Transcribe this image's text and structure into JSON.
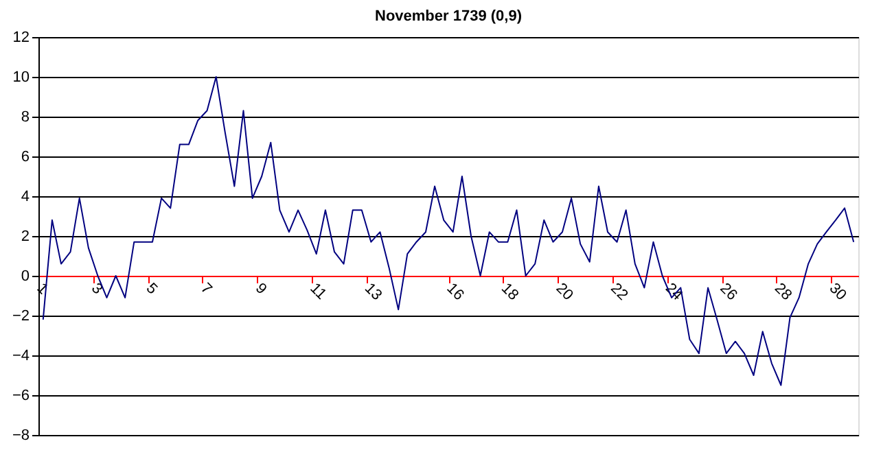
{
  "chart_data": {
    "type": "line",
    "title": "November 1739 (0,9)",
    "x": [
      1.17,
      1.5,
      1.83,
      2.17,
      2.5,
      2.83,
      3.17,
      3.5,
      3.83,
      4.17,
      4.5,
      4.83,
      5.17,
      5.5,
      5.83,
      6.17,
      6.5,
      6.83,
      7.17,
      7.5,
      7.83,
      8.17,
      8.5,
      8.83,
      9.17,
      9.5,
      9.83,
      10.17,
      10.5,
      10.83,
      11.17,
      11.5,
      11.83,
      12.17,
      12.5,
      12.83,
      13.17,
      13.5,
      13.83,
      14.17,
      14.5,
      14.83,
      15.17,
      15.5,
      15.83,
      16.17,
      16.5,
      16.83,
      17.17,
      17.5,
      17.83,
      18.17,
      18.5,
      18.83,
      19.17,
      19.5,
      19.83,
      20.17,
      20.5,
      20.83,
      21.17,
      21.5,
      21.83,
      22.17,
      22.5,
      22.83,
      23.17,
      23.5,
      23.83,
      24.17,
      24.5,
      24.83,
      25.17,
      25.5,
      25.83,
      26.17,
      26.5,
      26.83,
      27.17,
      27.5,
      27.83,
      28.17,
      28.5,
      28.83,
      29.17,
      29.5,
      29.83,
      30.17,
      30.5,
      30.83
    ],
    "series": [
      {
        "color": "#000080",
        "values": [
          -2.2,
          2.8,
          0.6,
          1.2,
          3.9,
          1.4,
          0.0,
          -1.1,
          0.0,
          -1.1,
          1.7,
          1.7,
          1.7,
          3.9,
          3.4,
          6.6,
          6.6,
          7.8,
          8.3,
          10.0,
          7.2,
          4.5,
          8.3,
          3.9,
          5.0,
          6.7,
          3.3,
          2.2,
          3.3,
          2.3,
          1.1,
          3.3,
          1.2,
          0.6,
          3.3,
          3.3,
          1.7,
          2.2,
          0.4,
          -1.7,
          1.1,
          1.7,
          2.2,
          4.5,
          2.8,
          2.2,
          5.0,
          2.0,
          0.0,
          2.2,
          1.7,
          1.7,
          3.3,
          0.0,
          0.6,
          2.8,
          1.7,
          2.2,
          3.9,
          1.6,
          0.7,
          4.5,
          2.2,
          1.7,
          3.3,
          0.6,
          -0.6,
          1.7,
          0.0,
          -1.1,
          -0.6,
          -3.2,
          -3.9,
          -0.6,
          -2.2,
          -3.9,
          -3.3,
          -3.9,
          -5.0,
          -2.8,
          -4.4,
          -5.5,
          -2.1,
          -1.1,
          0.6,
          1.6,
          2.2,
          2.8,
          3.4,
          1.7
        ]
      }
    ],
    "xlim": [
      1,
      31
    ],
    "xticks": [
      1,
      3,
      5,
      7,
      9,
      11,
      13,
      16,
      18,
      20,
      22,
      24,
      26,
      28,
      30
    ],
    "ylim": [
      -8,
      12
    ],
    "yticks": [
      -8,
      -6,
      -4,
      -2,
      0,
      2,
      4,
      6,
      8,
      10,
      12
    ],
    "grid": "y"
  }
}
